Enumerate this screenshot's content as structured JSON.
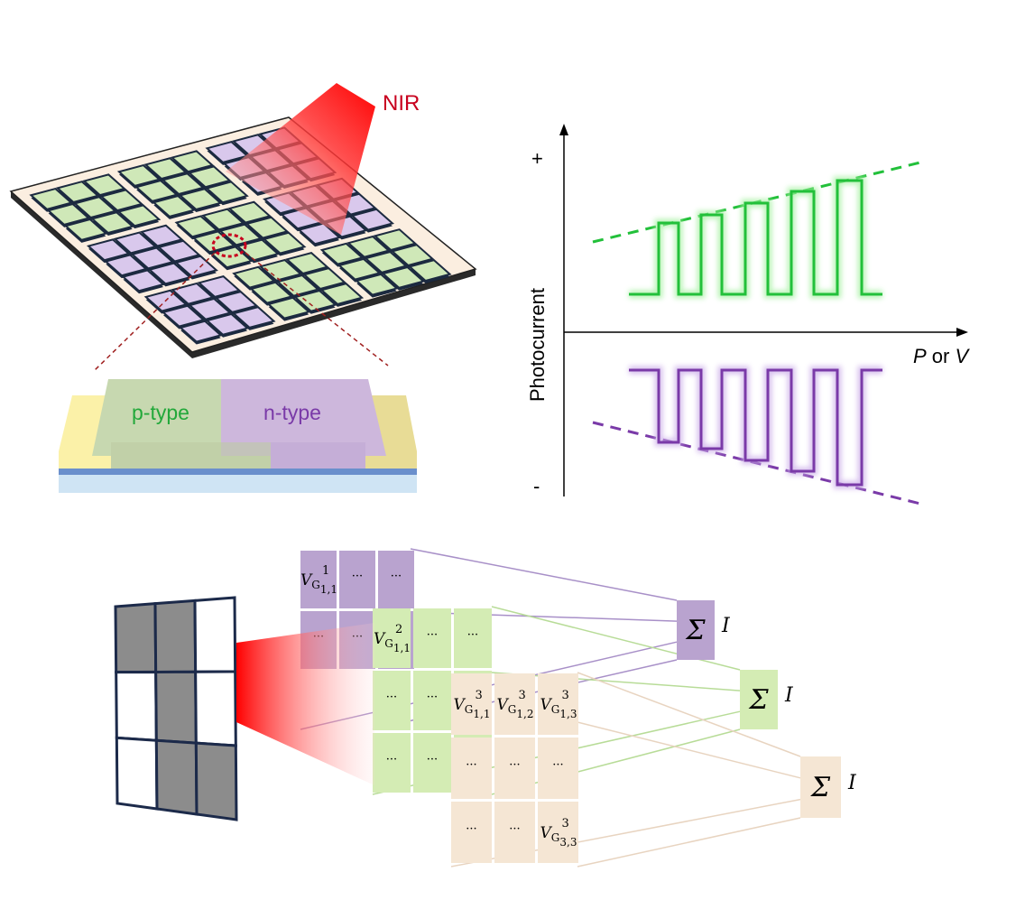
{
  "device": {
    "light_label": "NIR",
    "p_label": "p-type",
    "n_label": "n-type",
    "subarray_types": [
      [
        "green",
        "green",
        "purple"
      ],
      [
        "purple",
        "green",
        "purple"
      ],
      [
        "purple",
        "green",
        "green"
      ]
    ],
    "colors": {
      "green": "#cfe8b8",
      "purple": "#d9c8ec",
      "board": "#fbeee0",
      "beam": "#ff0000",
      "p_text": "#22a83a",
      "n_text": "#7a3aa8",
      "nir_text": "#c8001e"
    }
  },
  "response_plot": {
    "y_label": "Photocurrent",
    "x_label_p": "P",
    "x_label_or": " or ",
    "x_label_v": "V",
    "plus": "+",
    "minus": "-",
    "positive_color": "#22c03a",
    "negative_color": "#7a3aa8"
  },
  "kernels": {
    "input_pattern": [
      [
        1,
        1,
        0
      ],
      [
        0,
        1,
        0
      ],
      [
        0,
        1,
        1
      ]
    ],
    "layer1": {
      "color": "#b9a3cf",
      "cells": [
        {
          "base": "V",
          "sub": "G",
          "idx": "1,1",
          "sup": "1"
        },
        {
          "text": "···"
        },
        {
          "text": "···"
        },
        {
          "text": "···"
        },
        {
          "text": "···"
        },
        {
          "text": ""
        }
      ]
    },
    "layer2": {
      "color": "#d4ecb4",
      "cells": [
        {
          "base": "V",
          "sub": "G",
          "idx": "1,1",
          "sup": "2"
        },
        {
          "text": "···"
        },
        {
          "text": "···"
        },
        {
          "text": "···"
        },
        {
          "text": "···"
        },
        {
          "text": ""
        },
        {
          "text": "···"
        },
        {
          "text": "···"
        },
        {
          "text": ""
        }
      ]
    },
    "layer3": {
      "color": "#f5e6d4",
      "cells": [
        {
          "base": "V",
          "sub": "G",
          "idx": "1,1",
          "sup": "3"
        },
        {
          "base": "V",
          "sub": "G",
          "idx": "1,2",
          "sup": "3"
        },
        {
          "base": "V",
          "sub": "G",
          "idx": "1,3",
          "sup": "3"
        },
        {
          "text": "···"
        },
        {
          "text": "···"
        },
        {
          "text": "···"
        },
        {
          "text": "···"
        },
        {
          "text": "···"
        },
        {
          "base": "V",
          "sub": "G",
          "idx": "3,3",
          "sup": "3"
        }
      ]
    },
    "sums": [
      {
        "symbol": "Σ",
        "current": "I",
        "color": "#b9a3cf"
      },
      {
        "symbol": "Σ",
        "current": "I",
        "color": "#d4ecb4"
      },
      {
        "symbol": "Σ",
        "current": "I",
        "color": "#f5e6d4"
      }
    ]
  }
}
